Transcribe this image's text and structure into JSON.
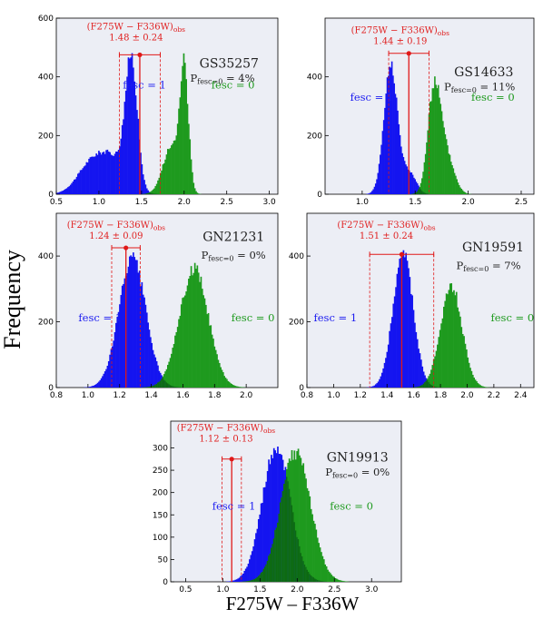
{
  "figure": {
    "ylabel": "Frequency",
    "xlabel": "F275W – F336W",
    "colors": {
      "background": "#eceef5",
      "fesc1": "#1414f0",
      "fesc0": "#1e9a1e",
      "overlap": "#0d6a12",
      "obs": "#e01818"
    }
  },
  "chart_data": [
    {
      "type": "bar",
      "panel": "GS35257",
      "name": "GS35257",
      "pfesc_prefix": "P",
      "pfesc_sub": "fesc=0",
      "pfesc_value": " = 4%",
      "obs_label": "(F275W − F336W)",
      "obs_sub": "obs",
      "obs_value": "1.48 ± 0.24",
      "obs": 1.48,
      "obs_err": 0.24,
      "obs_marker_y": 475,
      "fesc1_label": "fesc = 1",
      "fesc0_label": "fesc = 0",
      "xlim": [
        0.5,
        3.1
      ],
      "ylim": [
        0,
        600
      ],
      "xticks": [
        0.5,
        1.0,
        1.5,
        2.0,
        2.5,
        3.0
      ],
      "xticklabels": [
        "0.5",
        "1.0",
        "1.5",
        "2.0",
        "2.5",
        "3.0"
      ],
      "yticks": [
        0,
        200,
        400,
        600
      ],
      "yticklabels": [
        "0",
        "200",
        "400",
        "600"
      ],
      "series": [
        {
          "name": "fesc = 1",
          "peaks": [
            {
              "mu": 1.38,
              "sigma": 0.07,
              "amp": 430
            },
            {
              "mu": 1.17,
              "sigma": 0.16,
              "amp": 110
            },
            {
              "mu": 0.9,
              "sigma": 0.16,
              "amp": 95
            }
          ]
        },
        {
          "name": "fesc = 0",
          "peaks": [
            {
              "mu": 2.0,
              "sigma": 0.05,
              "amp": 400
            },
            {
              "mu": 1.85,
              "sigma": 0.1,
              "amp": 160
            }
          ]
        }
      ]
    },
    {
      "type": "bar",
      "panel": "GS14633",
      "name": "GS14633",
      "pfesc_prefix": "P",
      "pfesc_sub": "fesc=0",
      "pfesc_value": " = 11%",
      "obs_label": "(F275W − F336W)",
      "obs_sub": "obs",
      "obs_value": "1.44 ± 0.19",
      "obs": 1.44,
      "obs_err": 0.19,
      "obs_marker_y": 480,
      "fesc1_label": "fesc = 1",
      "fesc0_label": "fesc = 0",
      "xlim": [
        0.65,
        2.62
      ],
      "ylim": [
        0,
        600
      ],
      "xticks": [
        1.0,
        1.5,
        2.0,
        2.5
      ],
      "xticklabels": [
        "1.0",
        "1.5",
        "2.0",
        "2.5"
      ],
      "yticks": [
        0,
        200,
        400
      ],
      "yticklabels": [
        "0",
        "200",
        "400"
      ],
      "series": [
        {
          "name": "fesc = 1",
          "peaks": [
            {
              "mu": 1.27,
              "sigma": 0.065,
              "amp": 440
            },
            {
              "mu": 1.45,
              "sigma": 0.06,
              "amp": 70
            }
          ]
        },
        {
          "name": "fesc = 0",
          "peaks": [
            {
              "mu": 1.68,
              "sigma": 0.06,
              "amp": 360
            },
            {
              "mu": 1.8,
              "sigma": 0.07,
              "amp": 120
            }
          ]
        }
      ]
    },
    {
      "type": "bar",
      "panel": "GN21231",
      "name": "GN21231",
      "pfesc_prefix": "P",
      "pfesc_sub": "fesc=0",
      "pfesc_value": " = 0%",
      "obs_label": "(F275W − F336W)",
      "obs_sub": "obs",
      "obs_value": "1.24 ± 0.09",
      "obs": 1.24,
      "obs_err": 0.09,
      "obs_marker_y": 425,
      "fesc1_label": "fesc = 1",
      "fesc0_label": "fesc = 0",
      "xlim": [
        0.8,
        2.2
      ],
      "ylim": [
        0,
        530
      ],
      "xticks": [
        0.8,
        1.0,
        1.2,
        1.4,
        1.6,
        1.8,
        2.0
      ],
      "xticklabels": [
        "0.8",
        "1.0",
        "1.2",
        "1.4",
        "1.6",
        "1.8",
        "2.0"
      ],
      "yticks": [
        0,
        200,
        400
      ],
      "yticklabels": [
        "0",
        "200",
        "400"
      ],
      "series": [
        {
          "name": "fesc = 1",
          "peaks": [
            {
              "mu": 1.28,
              "sigma": 0.085,
              "amp": 390
            }
          ]
        },
        {
          "name": "fesc = 0",
          "peaks": [
            {
              "mu": 1.67,
              "sigma": 0.09,
              "amp": 360
            }
          ]
        }
      ]
    },
    {
      "type": "bar",
      "panel": "GN19591",
      "name": "GN19591",
      "pfesc_prefix": "P",
      "pfesc_sub": "fesc=0",
      "pfesc_value": " = 7%",
      "obs_label": "(F275W − F336W)",
      "obs_sub": "obs",
      "obs_value": "1.51 ± 0.24",
      "obs": 1.51,
      "obs_err": 0.24,
      "obs_marker_y": 405,
      "fesc1_label": "fesc = 1",
      "fesc0_label": "fesc = 0",
      "xlim": [
        0.8,
        2.5
      ],
      "ylim": [
        0,
        530
      ],
      "xticks": [
        0.8,
        1.0,
        1.2,
        1.4,
        1.6,
        1.8,
        2.0,
        2.2,
        2.4
      ],
      "xticklabels": [
        "0.8",
        "1.0",
        "1.2",
        "1.4",
        "1.6",
        "1.8",
        "2.0",
        "2.2",
        "2.4"
      ],
      "yticks": [
        0,
        200,
        400
      ],
      "yticklabels": [
        "0",
        "200",
        "400"
      ],
      "series": [
        {
          "name": "fesc = 1",
          "peaks": [
            {
              "mu": 1.52,
              "sigma": 0.075,
              "amp": 410
            }
          ]
        },
        {
          "name": "fesc = 0",
          "peaks": [
            {
              "mu": 1.88,
              "sigma": 0.08,
              "amp": 310
            }
          ]
        }
      ]
    },
    {
      "type": "bar",
      "panel": "GN19913",
      "name": "GN19913",
      "pfesc_prefix": "P",
      "pfesc_sub": "fesc=0",
      "pfesc_value": " = 0%",
      "obs_label": "(F275W − F336W)",
      "obs_sub": "obs",
      "obs_value": "1.12 ± 0.13",
      "obs": 1.12,
      "obs_err": 0.13,
      "obs_marker_y": 275,
      "fesc1_label": "fesc = 1",
      "fesc0_label": "fesc = 0",
      "xlim": [
        0.3,
        3.4
      ],
      "ylim": [
        0,
        360
      ],
      "xticks": [
        0.5,
        1.0,
        1.5,
        2.0,
        2.5,
        3.0
      ],
      "xticklabels": [
        "0.5",
        "1.0",
        "1.5",
        "2.0",
        "2.5",
        "3.0"
      ],
      "yticks": [
        0,
        50,
        100,
        150,
        200,
        250,
        300
      ],
      "yticklabels": [
        "0",
        "50",
        "100",
        "150",
        "200",
        "250",
        "300"
      ],
      "series": [
        {
          "name": "fesc = 1",
          "peaks": [
            {
              "mu": 1.72,
              "sigma": 0.19,
              "amp": 300
            }
          ]
        },
        {
          "name": "fesc = 0",
          "peaks": [
            {
              "mu": 1.98,
              "sigma": 0.2,
              "amp": 290
            }
          ]
        }
      ]
    }
  ]
}
